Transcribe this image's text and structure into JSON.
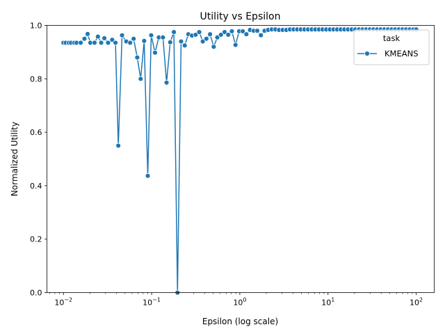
{
  "chart_data": {
    "type": "line",
    "title": "Utility vs Epsilon",
    "xlabel": "Epsilon (log scale)",
    "ylabel": "Normalized Utility",
    "xscale": "log",
    "xlim": [
      0.0065,
      160
    ],
    "ylim": [
      0.0,
      1.0
    ],
    "xticks": [
      {
        "value": 0.01,
        "base": "10",
        "exp": "−2"
      },
      {
        "value": 0.1,
        "base": "10",
        "exp": "−1"
      },
      {
        "value": 1,
        "base": "10",
        "exp": "0"
      },
      {
        "value": 10,
        "base": "10",
        "exp": "1"
      },
      {
        "value": 100,
        "base": "10",
        "exp": "2"
      }
    ],
    "yticks": [
      "0.0",
      "0.2",
      "0.4",
      "0.6",
      "0.8",
      "1.0"
    ],
    "grid": false,
    "legend": {
      "title": "task",
      "position": "top-right"
    },
    "color": "#1f77b4",
    "marker": "circle",
    "series": [
      {
        "name": "KMEANS",
        "points": [
          [
            0.01,
            0.935
          ],
          [
            0.0106,
            0.935
          ],
          [
            0.0115,
            0.935
          ],
          [
            0.0122,
            0.935
          ],
          [
            0.0133,
            0.935
          ],
          [
            0.0141,
            0.935
          ],
          [
            0.0157,
            0.935
          ],
          [
            0.0173,
            0.95
          ],
          [
            0.0188,
            0.968
          ],
          [
            0.0202,
            0.935
          ],
          [
            0.0225,
            0.935
          ],
          [
            0.0246,
            0.958
          ],
          [
            0.0268,
            0.935
          ],
          [
            0.0291,
            0.952
          ],
          [
            0.0321,
            0.935
          ],
          [
            0.0357,
            0.946
          ],
          [
            0.0389,
            0.935
          ],
          [
            0.0419,
            0.55
          ],
          [
            0.0462,
            0.963
          ],
          [
            0.0516,
            0.94
          ],
          [
            0.0571,
            0.935
          ],
          [
            0.0625,
            0.95
          ],
          [
            0.0687,
            0.88
          ],
          [
            0.0751,
            0.8
          ],
          [
            0.0823,
            0.942
          ],
          [
            0.0904,
            0.437
          ],
          [
            0.0989,
            0.963
          ],
          [
            0.1093,
            0.898
          ],
          [
            0.1205,
            0.955
          ],
          [
            0.1344,
            0.955
          ],
          [
            0.1477,
            0.786
          ],
          [
            0.1624,
            0.937
          ],
          [
            0.1787,
            0.975
          ],
          [
            0.1964,
            0.0
          ],
          [
            0.2159,
            0.94
          ],
          [
            0.2373,
            0.925
          ],
          [
            0.2611,
            0.967
          ],
          [
            0.2867,
            0.962
          ],
          [
            0.3155,
            0.965
          ],
          [
            0.3467,
            0.975
          ],
          [
            0.3802,
            0.94
          ],
          [
            0.4181,
            0.95
          ],
          [
            0.4597,
            0.967
          ],
          [
            0.5057,
            0.92
          ],
          [
            0.5558,
            0.955
          ],
          [
            0.6111,
            0.965
          ],
          [
            0.6718,
            0.975
          ],
          [
            0.7389,
            0.965
          ],
          [
            0.8123,
            0.978
          ],
          [
            0.8932,
            0.927
          ],
          [
            0.9818,
            0.978
          ],
          [
            1.0794,
            0.978
          ],
          [
            1.1867,
            0.967
          ],
          [
            1.3046,
            0.983
          ],
          [
            1.4343,
            0.98
          ],
          [
            1.5766,
            0.98
          ],
          [
            1.7335,
            0.963
          ],
          [
            1.9059,
            0.98
          ],
          [
            2.0953,
            0.983
          ],
          [
            2.3036,
            0.985
          ],
          [
            2.5324,
            0.985
          ],
          [
            2.7838,
            0.983
          ],
          [
            3.0606,
            0.983
          ],
          [
            3.3649,
            0.983
          ],
          [
            3.6996,
            0.985
          ],
          [
            4.0675,
            0.985
          ],
          [
            4.4718,
            0.985
          ],
          [
            4.9164,
            0.985
          ],
          [
            5.4057,
            0.985
          ],
          [
            5.9431,
            0.985
          ],
          [
            6.5335,
            0.985
          ],
          [
            7.1836,
            0.985
          ],
          [
            7.8976,
            0.985
          ],
          [
            8.6818,
            0.985
          ],
          [
            9.5454,
            0.985
          ],
          [
            10.494,
            0.985
          ],
          [
            11.538,
            0.985
          ],
          [
            12.685,
            0.985
          ],
          [
            13.946,
            0.985
          ],
          [
            15.333,
            0.985
          ],
          [
            16.858,
            0.985
          ],
          [
            18.534,
            0.985
          ],
          [
            20.377,
            0.985
          ],
          [
            22.403,
            0.985
          ],
          [
            24.63,
            0.985
          ],
          [
            27.079,
            0.985
          ],
          [
            29.772,
            0.985
          ],
          [
            32.732,
            0.985
          ],
          [
            35.987,
            0.985
          ],
          [
            39.565,
            0.985
          ],
          [
            43.499,
            0.985
          ],
          [
            47.824,
            0.985
          ],
          [
            52.579,
            0.985
          ],
          [
            57.807,
            0.985
          ],
          [
            63.555,
            0.985
          ],
          [
            69.875,
            0.985
          ],
          [
            76.822,
            0.985
          ],
          [
            84.461,
            0.985
          ],
          [
            92.859,
            0.985
          ],
          [
            100.0,
            0.985
          ]
        ]
      }
    ]
  }
}
